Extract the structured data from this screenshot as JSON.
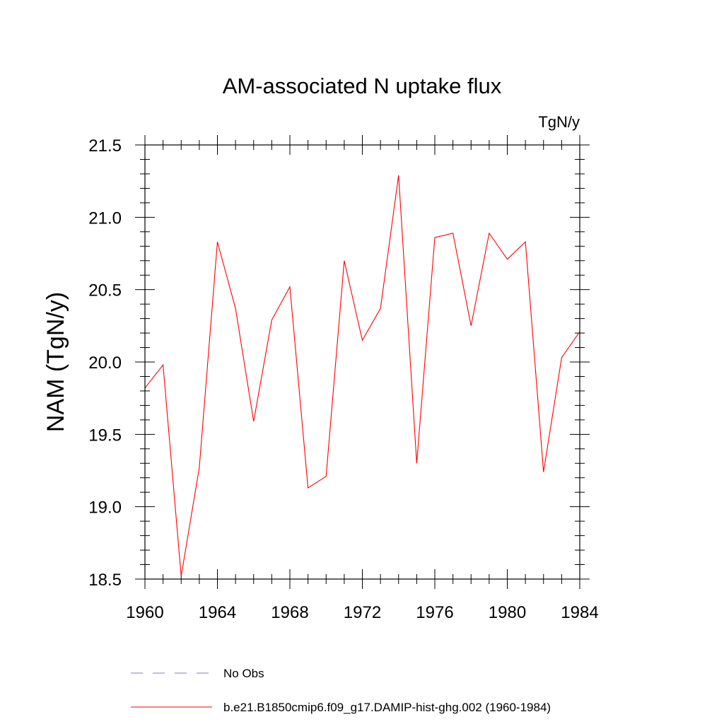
{
  "chart_data": {
    "type": "line",
    "title": "AM-associated N uptake flux",
    "units": "TgN/y",
    "xlabel": "",
    "ylabel": "NAM  (TgN/y)",
    "xlim": [
      1960,
      1984
    ],
    "ylim": [
      18.5,
      21.5
    ],
    "x_ticks": [
      1960,
      1964,
      1968,
      1972,
      1976,
      1980,
      1984
    ],
    "x_tick_labels": [
      "1960",
      "1964",
      "1968",
      "1972",
      "1976",
      "1980",
      "1984"
    ],
    "y_ticks": [
      18.5,
      19.0,
      19.5,
      20.0,
      20.5,
      21.0,
      21.5
    ],
    "y_tick_labels": [
      "18.5",
      "19.0",
      "19.5",
      "20.0",
      "20.5",
      "21.0",
      "21.5"
    ],
    "grid": false,
    "legend_position": "bottom",
    "x": [
      1960,
      1961,
      1962,
      1963,
      1964,
      1965,
      1966,
      1967,
      1968,
      1969,
      1970,
      1971,
      1972,
      1973,
      1974,
      1975,
      1976,
      1977,
      1978,
      1979,
      1980,
      1981,
      1982,
      1983,
      1984
    ],
    "series": [
      {
        "name": "b.e21.B1850cmip6.f09_g17.DAMIP-hist-ghg.002 (1960-1984)",
        "color": "#ff0000",
        "style": "solid",
        "values": [
          19.82,
          19.98,
          18.52,
          19.27,
          20.83,
          20.37,
          19.59,
          20.29,
          20.52,
          19.13,
          19.21,
          20.7,
          20.15,
          20.37,
          21.29,
          19.3,
          20.86,
          20.89,
          20.25,
          20.89,
          20.71,
          20.83,
          19.24,
          20.03,
          20.21
        ]
      }
    ],
    "legend": [
      {
        "label": "No Obs",
        "color": "#7b7bd0",
        "style": "dashed"
      },
      {
        "label": "b.e21.B1850cmip6.f09_g17.DAMIP-hist-ghg.002 (1960-1984)",
        "color": "#ff0000",
        "style": "solid"
      }
    ]
  }
}
